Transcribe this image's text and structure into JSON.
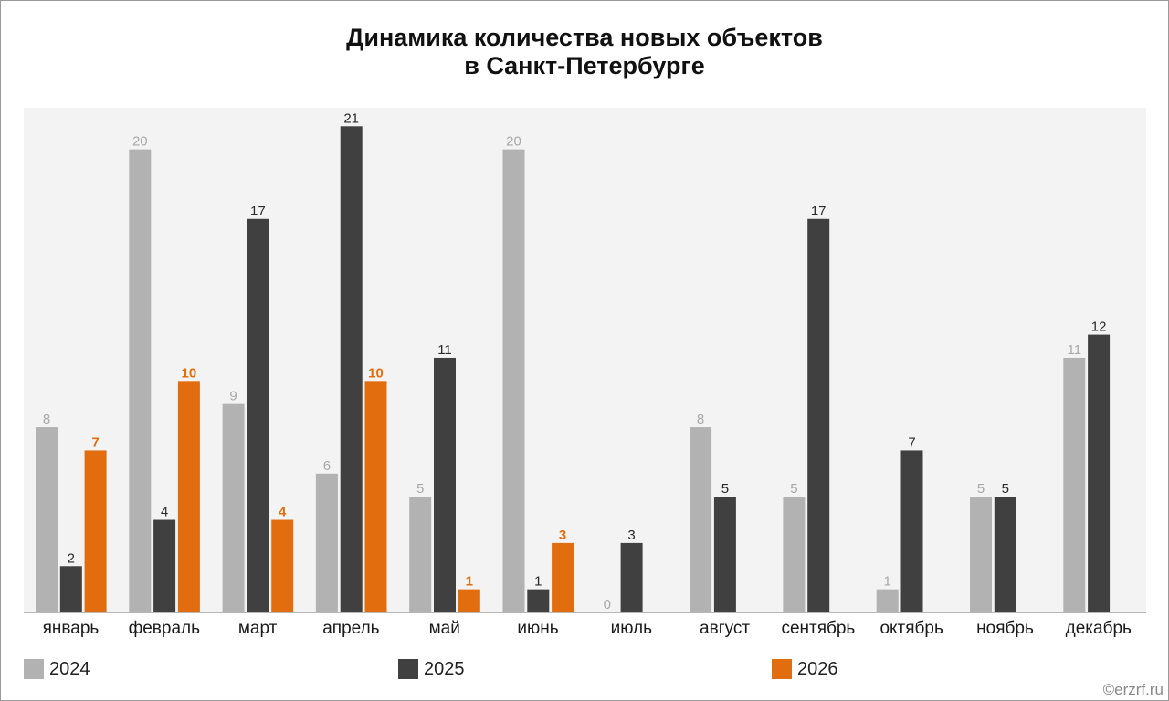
{
  "title_line1": "Динамика количества новых объектов",
  "title_line2": "в Санкт-Петербурге",
  "copyright": "©erzrf.ru",
  "colors": {
    "s2024": "#b2b2b2",
    "s2025": "#404040",
    "s2026": "#e26d0e",
    "plot_bg": "#f3f3f3"
  },
  "chart_data": {
    "type": "bar",
    "title": "Динамика количества новых объектов в Санкт-Петербурге",
    "categories": [
      "январь",
      "февраль",
      "март",
      "апрель",
      "май",
      "июнь",
      "июль",
      "август",
      "сентябрь",
      "октябрь",
      "ноябрь",
      "декабрь"
    ],
    "series": [
      {
        "name": "2024",
        "values": [
          8,
          20,
          9,
          6,
          5,
          20,
          0,
          8,
          5,
          1,
          5,
          11
        ]
      },
      {
        "name": "2025",
        "values": [
          2,
          4,
          17,
          21,
          11,
          1,
          3,
          5,
          17,
          7,
          5,
          12
        ]
      },
      {
        "name": "2026",
        "values": [
          7,
          10,
          4,
          10,
          1,
          3,
          null,
          null,
          null,
          null,
          null,
          null
        ]
      }
    ],
    "ylim": [
      0,
      21.8
    ],
    "grid": false,
    "legend": "bottom"
  }
}
